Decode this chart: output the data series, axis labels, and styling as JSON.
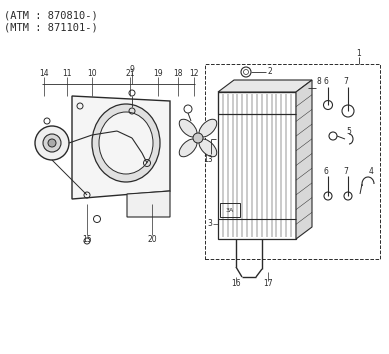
{
  "title1": "(ATM : 870810-)",
  "title2": "(MTM : 871101-)",
  "bg": "#ffffff",
  "lc": "#2a2a2a",
  "tc": "#2a2a2a",
  "fig_w": 3.89,
  "fig_h": 3.54,
  "dpi": 100
}
